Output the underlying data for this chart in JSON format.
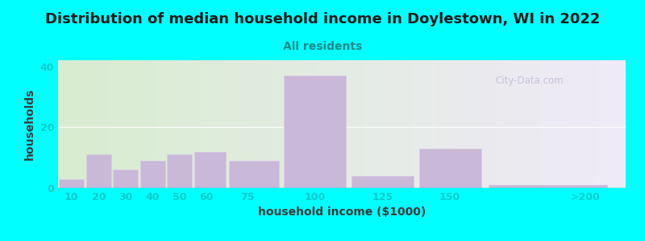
{
  "title": "Distribution of median household income in Doylestown, WI in 2022",
  "subtitle": "All residents",
  "xlabel": "household income ($1000)",
  "ylabel": "households",
  "background_color": "#00FFFF",
  "bar_color": "#c9b8d8",
  "bar_edge_color": "#d8cce4",
  "categories": [
    "10",
    "20",
    "30",
    "40",
    "50",
    "60",
    "75",
    "100",
    "125",
    "150",
    ">200"
  ],
  "values": [
    3,
    11,
    6,
    9,
    11,
    12,
    9,
    37,
    4,
    13,
    1
  ],
  "bin_edges": [
    5,
    15,
    25,
    35,
    45,
    55,
    67.5,
    87.5,
    112.5,
    137.5,
    162.5,
    210
  ],
  "ylim": [
    0,
    42
  ],
  "yticks": [
    0,
    20,
    40
  ],
  "xtick_positions": [
    10,
    20,
    30,
    40,
    50,
    60,
    75,
    100,
    125,
    150,
    200
  ],
  "xtick_labels": [
    "10",
    "20",
    "30",
    "40",
    "50",
    "60",
    "75",
    "100",
    "125",
    "150",
    ">200"
  ],
  "xlim": [
    5,
    215
  ],
  "title_fontsize": 13,
  "subtitle_fontsize": 10,
  "label_fontsize": 10,
  "tick_fontsize": 9,
  "title_color": "#1a1a1a",
  "subtitle_color": "#1a8a8a",
  "axis_label_color": "#3a3a3a",
  "tick_color": "#00CCCC",
  "watermark": "City-Data.com"
}
